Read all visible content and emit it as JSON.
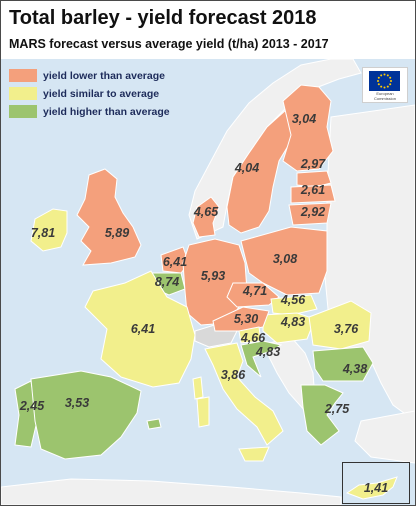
{
  "title": "Total barley - yield forecast 2018",
  "subtitle": "MARS forecast versus average yield (t/ha) 2013 - 2017",
  "colors": {
    "sea": "#d6e6f3",
    "non_eu_land": "#f0f0f0",
    "lower": "#f4a07c",
    "similar": "#f2ef8c",
    "higher": "#9cc46e",
    "border": "#ffffff",
    "label_text": "#3a3a3a"
  },
  "legend": [
    {
      "label": "yield lower than average",
      "color": "#f4a07c"
    },
    {
      "label": "yield similar to average",
      "color": "#f2ef8c"
    },
    {
      "label": "yield higher than average",
      "color": "#9cc46e"
    }
  ],
  "logo": {
    "icon": "eu-flag-icon",
    "caption": "European Commission"
  },
  "countries": [
    {
      "name": "Ireland",
      "value": "7,81",
      "category": "similar"
    },
    {
      "name": "United Kingdom",
      "value": "5,89",
      "category": "lower"
    },
    {
      "name": "Sweden",
      "value": "4,04",
      "category": "lower"
    },
    {
      "name": "Finland",
      "value": "3,04",
      "category": "lower"
    },
    {
      "name": "Estonia",
      "value": "2,97",
      "category": "lower"
    },
    {
      "name": "Latvia",
      "value": "2,61",
      "category": "lower"
    },
    {
      "name": "Lithuania",
      "value": "2,92",
      "category": "lower"
    },
    {
      "name": "Denmark",
      "value": "4,65",
      "category": "lower"
    },
    {
      "name": "Netherlands",
      "value": "6,41",
      "category": "lower"
    },
    {
      "name": "Belgium",
      "value": "8,74",
      "category": "higher"
    },
    {
      "name": "Germany",
      "value": "5,93",
      "category": "lower"
    },
    {
      "name": "Poland",
      "value": "3,08",
      "category": "lower"
    },
    {
      "name": "Czechia",
      "value": "4,71",
      "category": "lower"
    },
    {
      "name": "Slovakia",
      "value": "4,56",
      "category": "similar"
    },
    {
      "name": "Hungary",
      "value": "4,83",
      "category": "similar"
    },
    {
      "name": "Austria",
      "value": "5,30",
      "category": "lower"
    },
    {
      "name": "Slovenia",
      "value": "4,66",
      "category": "similar"
    },
    {
      "name": "Croatia",
      "value": "4,83",
      "category": "higher"
    },
    {
      "name": "Romania",
      "value": "3,76",
      "category": "similar"
    },
    {
      "name": "Bulgaria",
      "value": "4,38",
      "category": "higher"
    },
    {
      "name": "Greece",
      "value": "2,75",
      "category": "higher"
    },
    {
      "name": "Italy",
      "value": "3,86",
      "category": "similar"
    },
    {
      "name": "France",
      "value": "6,41",
      "category": "similar"
    },
    {
      "name": "Portugal",
      "value": "2,45",
      "category": "higher"
    },
    {
      "name": "Spain",
      "value": "3,53",
      "category": "higher"
    },
    {
      "name": "Cyprus",
      "value": "1,41",
      "category": "similar"
    }
  ]
}
